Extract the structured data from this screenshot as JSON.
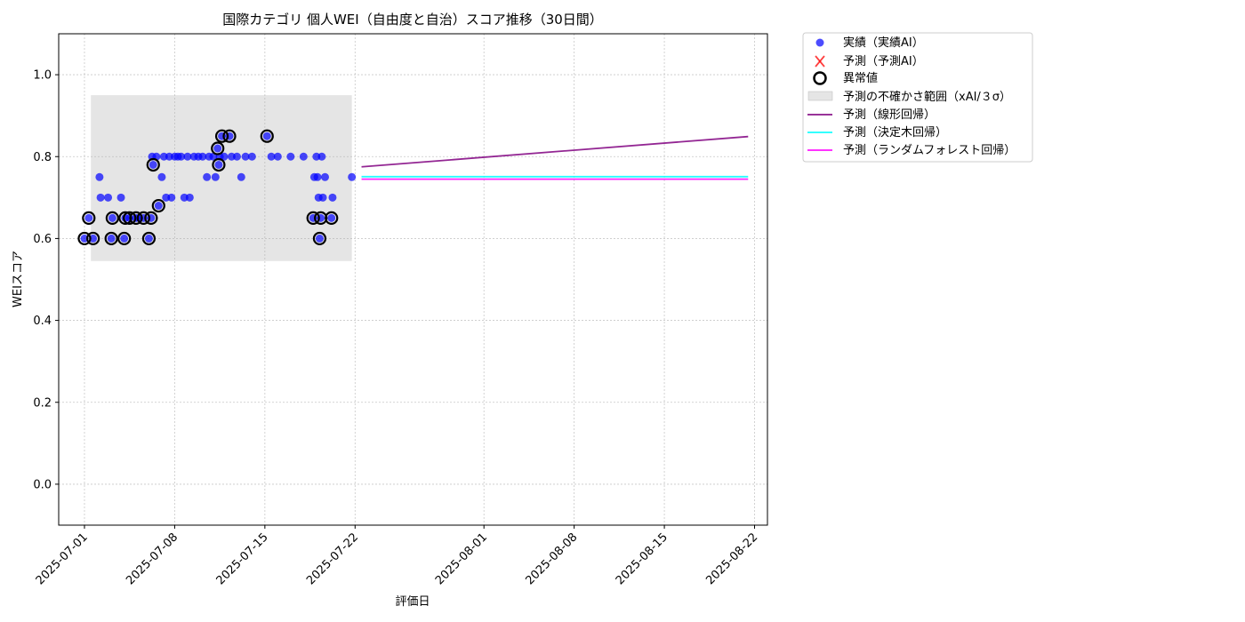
{
  "chart_data": {
    "type": "scatter",
    "title": "国際カテゴリ 個人WEI（自由度と自治）スコア推移（30日間）",
    "xlabel": "評価日",
    "ylabel": "WEIスコア",
    "xlim": [
      "2025-06-29",
      "2025-08-23"
    ],
    "ylim": [
      -0.1,
      1.1
    ],
    "x_ticks": [
      "2025-07-01",
      "2025-07-08",
      "2025-07-15",
      "2025-07-22",
      "2025-08-01",
      "2025-08-08",
      "2025-08-15",
      "2025-08-22"
    ],
    "y_ticks": [
      0.0,
      0.2,
      0.4,
      0.6,
      0.8,
      1.0
    ],
    "y_tick_labels": [
      "0.0",
      "0.2",
      "0.4",
      "0.6",
      "0.8",
      "1.0"
    ],
    "grid": true,
    "legend_position": "outside-top-right",
    "legend": {
      "actual": "実績（実績AI）",
      "predicted": "予測（予測AI）",
      "anomaly": "異常値",
      "band": "予測の不確かさ範囲（xAI/３σ）",
      "linear": "予測（線形回帰）",
      "tree": "予測（決定木回帰）",
      "forest": "予測（ランダムフォレスト回帰）"
    },
    "colors": {
      "actual": "#0000ff",
      "predicted": "#ff0000",
      "anomaly": "#000000",
      "band": "#d3d3d3",
      "linear": "#800080",
      "tree": "#00ffff",
      "forest": "#ff00ff"
    },
    "uncertainty_band": {
      "x": [
        "2025-07-01 12:00",
        "2025-07-21 18:00"
      ],
      "y": [
        0.545,
        0.95
      ]
    },
    "actual_points": [
      [
        "2025-07-01 00:00",
        0.6
      ],
      [
        "2025-07-01 08:00",
        0.65
      ],
      [
        "2025-07-01 16:00",
        0.6
      ],
      [
        "2025-07-02 04:00",
        0.75
      ],
      [
        "2025-07-02 06:00",
        0.7
      ],
      [
        "2025-07-02 20:00",
        0.7
      ],
      [
        "2025-07-03 02:00",
        0.6
      ],
      [
        "2025-07-03 04:00",
        0.65
      ],
      [
        "2025-07-03 20:00",
        0.7
      ],
      [
        "2025-07-04 02:00",
        0.6
      ],
      [
        "2025-07-04 04:00",
        0.65
      ],
      [
        "2025-07-04 12:00",
        0.65
      ],
      [
        "2025-07-05 00:00",
        0.65
      ],
      [
        "2025-07-05 06:00",
        0.65
      ],
      [
        "2025-07-05 14:00",
        0.65
      ],
      [
        "2025-07-06 00:00",
        0.6
      ],
      [
        "2025-07-06 04:00",
        0.65
      ],
      [
        "2025-07-06 06:00",
        0.8
      ],
      [
        "2025-07-06 08:00",
        0.78
      ],
      [
        "2025-07-06 14:00",
        0.8
      ],
      [
        "2025-07-06 18:00",
        0.68
      ],
      [
        "2025-07-07 00:00",
        0.75
      ],
      [
        "2025-07-07 04:00",
        0.8
      ],
      [
        "2025-07-07 08:00",
        0.7
      ],
      [
        "2025-07-07 14:00",
        0.8
      ],
      [
        "2025-07-07 18:00",
        0.7
      ],
      [
        "2025-07-08 00:00",
        0.8
      ],
      [
        "2025-07-08 06:00",
        0.8
      ],
      [
        "2025-07-08 12:00",
        0.8
      ],
      [
        "2025-07-08 18:00",
        0.7
      ],
      [
        "2025-07-09 00:00",
        0.8
      ],
      [
        "2025-07-09 04:00",
        0.7
      ],
      [
        "2025-07-09 12:00",
        0.8
      ],
      [
        "2025-07-09 20:00",
        0.8
      ],
      [
        "2025-07-10 04:00",
        0.8
      ],
      [
        "2025-07-10 12:00",
        0.75
      ],
      [
        "2025-07-10 16:00",
        0.8
      ],
      [
        "2025-07-11 00:00",
        0.8
      ],
      [
        "2025-07-11 04:00",
        0.75
      ],
      [
        "2025-07-11 08:00",
        0.82
      ],
      [
        "2025-07-11 10:00",
        0.78
      ],
      [
        "2025-07-11 12:00",
        0.8
      ],
      [
        "2025-07-11 16:00",
        0.85
      ],
      [
        "2025-07-11 20:00",
        0.8
      ],
      [
        "2025-07-12 06:00",
        0.85
      ],
      [
        "2025-07-12 10:00",
        0.8
      ],
      [
        "2025-07-12 20:00",
        0.8
      ],
      [
        "2025-07-13 04:00",
        0.75
      ],
      [
        "2025-07-13 12:00",
        0.8
      ],
      [
        "2025-07-14 00:00",
        0.8
      ],
      [
        "2025-07-15 04:00",
        0.85
      ],
      [
        "2025-07-15 12:00",
        0.8
      ],
      [
        "2025-07-16 00:00",
        0.8
      ],
      [
        "2025-07-17 00:00",
        0.8
      ],
      [
        "2025-07-18 00:00",
        0.8
      ],
      [
        "2025-07-18 18:00",
        0.65
      ],
      [
        "2025-07-18 20:00",
        0.75
      ],
      [
        "2025-07-19 00:00",
        0.8
      ],
      [
        "2025-07-19 02:00",
        0.75
      ],
      [
        "2025-07-19 04:00",
        0.7
      ],
      [
        "2025-07-19 06:00",
        0.6
      ],
      [
        "2025-07-19 08:00",
        0.65
      ],
      [
        "2025-07-19 10:00",
        0.8
      ],
      [
        "2025-07-19 12:00",
        0.7
      ],
      [
        "2025-07-19 16:00",
        0.75
      ],
      [
        "2025-07-20 04:00",
        0.65
      ],
      [
        "2025-07-20 06:00",
        0.7
      ],
      [
        "2025-07-21 18:00",
        0.75
      ]
    ],
    "anomaly_points": [
      [
        "2025-07-01 00:00",
        0.6
      ],
      [
        "2025-07-01 08:00",
        0.65
      ],
      [
        "2025-07-01 16:00",
        0.6
      ],
      [
        "2025-07-03 02:00",
        0.6
      ],
      [
        "2025-07-03 04:00",
        0.65
      ],
      [
        "2025-07-04 02:00",
        0.6
      ],
      [
        "2025-07-04 04:00",
        0.65
      ],
      [
        "2025-07-04 12:00",
        0.65
      ],
      [
        "2025-07-05 00:00",
        0.65
      ],
      [
        "2025-07-05 14:00",
        0.65
      ],
      [
        "2025-07-06 00:00",
        0.6
      ],
      [
        "2025-07-06 04:00",
        0.65
      ],
      [
        "2025-07-06 08:00",
        0.78
      ],
      [
        "2025-07-06 18:00",
        0.68
      ],
      [
        "2025-07-11 08:00",
        0.82
      ],
      [
        "2025-07-11 10:00",
        0.78
      ],
      [
        "2025-07-11 16:00",
        0.85
      ],
      [
        "2025-07-12 06:00",
        0.85
      ],
      [
        "2025-07-15 04:00",
        0.85
      ],
      [
        "2025-07-18 18:00",
        0.65
      ],
      [
        "2025-07-19 06:00",
        0.6
      ],
      [
        "2025-07-19 08:00",
        0.65
      ],
      [
        "2025-07-20 04:00",
        0.65
      ]
    ],
    "series": [
      {
        "name": "予測（線形回帰）",
        "x": [
          "2025-07-22 12:00",
          "2025-08-21 12:00"
        ],
        "y": [
          0.775,
          0.849
        ]
      },
      {
        "name": "予測（決定木回帰）",
        "x": [
          "2025-07-22 12:00",
          "2025-08-21 12:00"
        ],
        "y": [
          0.751,
          0.751
        ]
      },
      {
        "name": "予測（ランダムフォレスト回帰）",
        "x": [
          "2025-07-22 12:00",
          "2025-08-21 12:00"
        ],
        "y": [
          0.745,
          0.745
        ]
      }
    ]
  }
}
